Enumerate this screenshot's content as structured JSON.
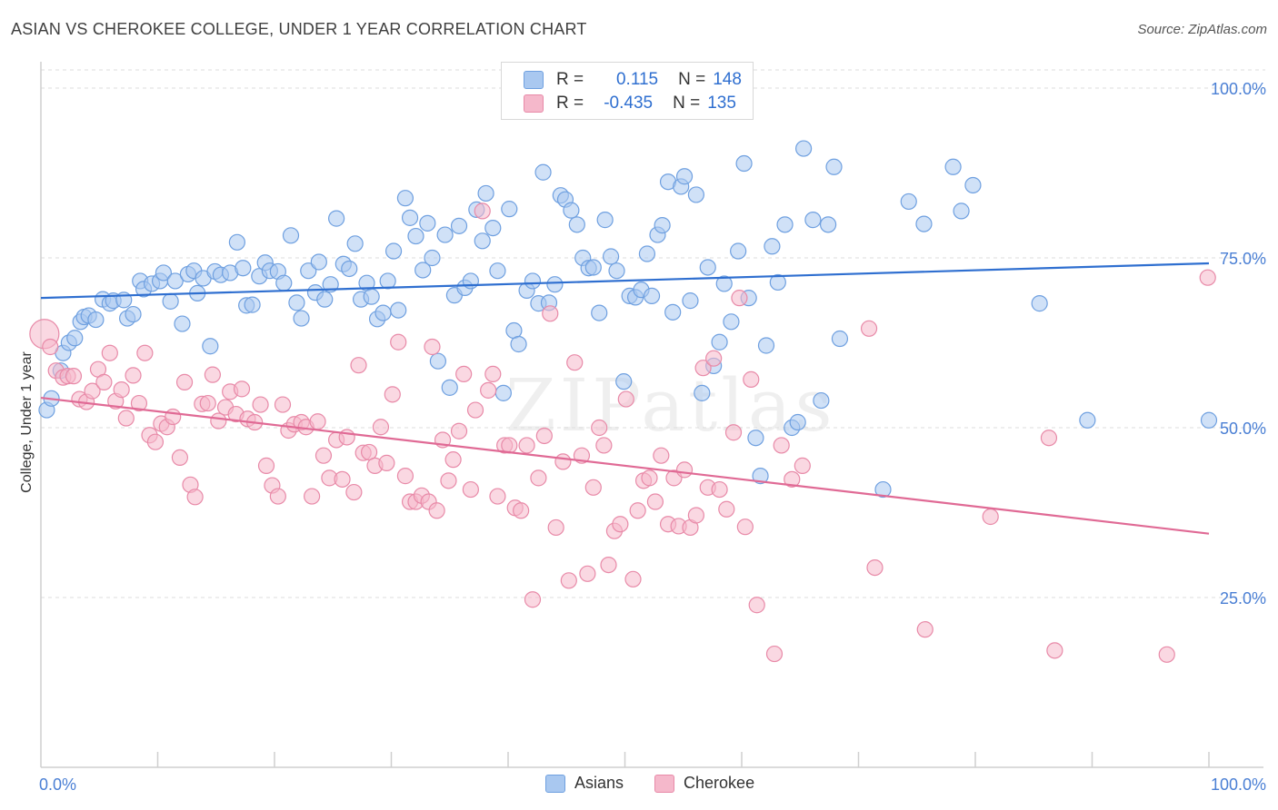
{
  "header": {
    "title": "ASIAN VS CHEROKEE COLLEGE, UNDER 1 YEAR CORRELATION CHART",
    "source": "Source: ZipAtlas.com"
  },
  "legend": {
    "rows": [
      {
        "r_label": "R =",
        "r_value": "0.115",
        "n_label": "N =",
        "n_value": "148",
        "color": "#a9c8f0"
      },
      {
        "r_label": "R =",
        "r_value": "-0.435",
        "n_label": "N =",
        "n_value": "135",
        "color": "#f5b8cb"
      }
    ]
  },
  "bottom_legend": {
    "items": [
      {
        "label": "Asians",
        "color": "#a9c8f0"
      },
      {
        "label": "Cherokee",
        "color": "#f5b8cb"
      }
    ]
  },
  "watermark": "ZIPatlas",
  "chart_data": {
    "type": "scatter",
    "title": "ASIAN VS CHEROKEE COLLEGE, UNDER 1 YEAR CORRELATION CHART",
    "xlabel": "",
    "ylabel": "College, Under 1 year",
    "xlim": [
      0,
      100
    ],
    "ylim": [
      0,
      105
    ],
    "x_tick_labels": [
      "0.0%",
      "100.0%"
    ],
    "y_ticks": [
      25,
      50,
      75,
      100
    ],
    "y_tick_labels": [
      "25.0%",
      "50.0%",
      "75.0%",
      "100.0%"
    ],
    "grid": true,
    "legend_position": "top-center",
    "series": [
      {
        "name": "Asians",
        "color": "#6fa0e0",
        "fill": "#a9c8f0",
        "r": 0.115,
        "n": 148,
        "trend": {
          "x": [
            0,
            100
          ],
          "y": [
            69.1,
            74.2
          ]
        },
        "points": [
          [
            0.5,
            52.6
          ],
          [
            0.9,
            54.3
          ],
          [
            1.7,
            58.4
          ],
          [
            1.9,
            61.0
          ],
          [
            2.4,
            62.5
          ],
          [
            2.9,
            63.2
          ],
          [
            3.4,
            65.6
          ],
          [
            3.7,
            66.3
          ],
          [
            4.1,
            66.5
          ],
          [
            4.7,
            65.9
          ],
          [
            5.3,
            68.9
          ],
          [
            5.9,
            68.3
          ],
          [
            6.2,
            68.7
          ],
          [
            7.1,
            68.8
          ],
          [
            7.4,
            66.1
          ],
          [
            7.9,
            66.7
          ],
          [
            8.5,
            71.6
          ],
          [
            8.8,
            70.4
          ],
          [
            9.5,
            71.2
          ],
          [
            10.2,
            71.6
          ],
          [
            10.5,
            72.8
          ],
          [
            11.1,
            68.6
          ],
          [
            11.5,
            71.6
          ],
          [
            12.1,
            65.3
          ],
          [
            12.6,
            72.6
          ],
          [
            13.1,
            73.1
          ],
          [
            13.4,
            69.8
          ],
          [
            13.9,
            72.0
          ],
          [
            14.5,
            62.0
          ],
          [
            14.9,
            73.0
          ],
          [
            15.4,
            72.5
          ],
          [
            16.2,
            72.8
          ],
          [
            16.8,
            77.3
          ],
          [
            17.3,
            73.5
          ],
          [
            17.6,
            68.0
          ],
          [
            18.1,
            68.1
          ],
          [
            18.7,
            72.3
          ],
          [
            19.2,
            74.3
          ],
          [
            19.6,
            73.1
          ],
          [
            20.3,
            73.0
          ],
          [
            20.8,
            71.3
          ],
          [
            21.4,
            78.3
          ],
          [
            21.9,
            68.4
          ],
          [
            22.3,
            66.1
          ],
          [
            22.9,
            73.1
          ],
          [
            23.5,
            69.9
          ],
          [
            23.8,
            74.4
          ],
          [
            24.3,
            68.9
          ],
          [
            24.8,
            71.1
          ],
          [
            25.3,
            80.8
          ],
          [
            25.9,
            74.1
          ],
          [
            26.4,
            73.4
          ],
          [
            26.9,
            77.1
          ],
          [
            27.4,
            68.9
          ],
          [
            27.9,
            71.3
          ],
          [
            28.3,
            69.3
          ],
          [
            28.8,
            66.0
          ],
          [
            29.3,
            66.9
          ],
          [
            29.7,
            71.6
          ],
          [
            30.2,
            76.0
          ],
          [
            30.6,
            67.3
          ],
          [
            31.2,
            83.8
          ],
          [
            31.6,
            80.9
          ],
          [
            32.1,
            78.2
          ],
          [
            32.7,
            73.2
          ],
          [
            33.1,
            80.1
          ],
          [
            33.5,
            75.0
          ],
          [
            34.0,
            59.8
          ],
          [
            34.6,
            78.4
          ],
          [
            35.0,
            55.9
          ],
          [
            35.4,
            69.5
          ],
          [
            35.8,
            79.7
          ],
          [
            36.3,
            70.6
          ],
          [
            36.8,
            71.6
          ],
          [
            37.3,
            82.1
          ],
          [
            37.8,
            77.5
          ],
          [
            38.1,
            84.5
          ],
          [
            38.7,
            79.4
          ],
          [
            39.1,
            73.1
          ],
          [
            39.6,
            55.1
          ],
          [
            40.1,
            82.2
          ],
          [
            40.5,
            64.3
          ],
          [
            40.9,
            62.3
          ],
          [
            41.6,
            70.2
          ],
          [
            42.1,
            71.6
          ],
          [
            42.6,
            68.3
          ],
          [
            43.0,
            87.6
          ],
          [
            43.5,
            68.4
          ],
          [
            44.0,
            71.1
          ],
          [
            44.5,
            84.2
          ],
          [
            44.9,
            83.6
          ],
          [
            45.4,
            82.0
          ],
          [
            45.9,
            79.9
          ],
          [
            46.4,
            75.0
          ],
          [
            46.9,
            73.5
          ],
          [
            47.3,
            73.6
          ],
          [
            47.8,
            66.9
          ],
          [
            48.3,
            80.6
          ],
          [
            48.8,
            75.2
          ],
          [
            49.3,
            73.1
          ],
          [
            49.9,
            56.8
          ],
          [
            50.4,
            69.4
          ],
          [
            50.9,
            69.2
          ],
          [
            51.4,
            70.3
          ],
          [
            51.9,
            75.6
          ],
          [
            52.3,
            69.4
          ],
          [
            52.8,
            78.4
          ],
          [
            53.2,
            79.8
          ],
          [
            53.7,
            86.2
          ],
          [
            54.1,
            67.0
          ],
          [
            54.8,
            85.5
          ],
          [
            55.1,
            87.0
          ],
          [
            55.6,
            68.7
          ],
          [
            56.1,
            84.3
          ],
          [
            56.6,
            55.1
          ],
          [
            57.1,
            73.6
          ],
          [
            57.6,
            59.1
          ],
          [
            58.1,
            62.6
          ],
          [
            58.5,
            71.2
          ],
          [
            59.1,
            65.6
          ],
          [
            59.7,
            76.0
          ],
          [
            60.2,
            88.9
          ],
          [
            60.6,
            69.1
          ],
          [
            61.2,
            48.5
          ],
          [
            61.6,
            42.9
          ],
          [
            62.1,
            62.1
          ],
          [
            62.6,
            76.7
          ],
          [
            63.1,
            71.4
          ],
          [
            63.7,
            79.9
          ],
          [
            64.3,
            50.0
          ],
          [
            64.8,
            50.8
          ],
          [
            65.3,
            91.1
          ],
          [
            66.1,
            80.6
          ],
          [
            66.8,
            54.0
          ],
          [
            67.4,
            79.9
          ],
          [
            67.9,
            88.4
          ],
          [
            68.4,
            63.1
          ],
          [
            72.1,
            40.9
          ],
          [
            74.3,
            83.3
          ],
          [
            75.6,
            80.0
          ],
          [
            78.1,
            88.4
          ],
          [
            78.8,
            81.9
          ],
          [
            79.8,
            85.7
          ],
          [
            85.5,
            68.3
          ],
          [
            89.6,
            51.1
          ],
          [
            100.0,
            51.1
          ]
        ]
      },
      {
        "name": "Cherokee",
        "color": "#e88aa8",
        "fill": "#f5b8cb",
        "r": -0.435,
        "n": 135,
        "trend": {
          "x": [
            0,
            100
          ],
          "y": [
            54.4,
            34.4
          ]
        },
        "points": [
          [
            0.3,
            63.8
          ],
          [
            0.8,
            61.9
          ],
          [
            1.3,
            58.4
          ],
          [
            1.9,
            57.4
          ],
          [
            2.3,
            57.6
          ],
          [
            2.8,
            57.6
          ],
          [
            3.3,
            54.2
          ],
          [
            3.9,
            53.8
          ],
          [
            4.4,
            55.4
          ],
          [
            4.9,
            58.6
          ],
          [
            5.4,
            56.7
          ],
          [
            5.9,
            61.0
          ],
          [
            6.4,
            53.9
          ],
          [
            6.9,
            55.6
          ],
          [
            7.3,
            51.4
          ],
          [
            7.9,
            57.7
          ],
          [
            8.4,
            53.6
          ],
          [
            8.9,
            61.0
          ],
          [
            9.3,
            48.9
          ],
          [
            9.8,
            47.9
          ],
          [
            10.3,
            50.6
          ],
          [
            10.8,
            50.1
          ],
          [
            11.3,
            51.6
          ],
          [
            11.9,
            45.6
          ],
          [
            12.3,
            56.7
          ],
          [
            12.8,
            41.6
          ],
          [
            13.2,
            39.8
          ],
          [
            13.8,
            53.5
          ],
          [
            14.3,
            53.6
          ],
          [
            14.7,
            57.8
          ],
          [
            15.2,
            51.0
          ],
          [
            15.8,
            53.0
          ],
          [
            16.2,
            55.3
          ],
          [
            16.7,
            52.0
          ],
          [
            17.2,
            55.7
          ],
          [
            17.7,
            51.3
          ],
          [
            18.3,
            50.8
          ],
          [
            18.8,
            53.4
          ],
          [
            19.3,
            44.4
          ],
          [
            19.8,
            41.5
          ],
          [
            20.3,
            39.9
          ],
          [
            20.7,
            53.4
          ],
          [
            21.2,
            49.6
          ],
          [
            21.7,
            50.5
          ],
          [
            22.3,
            50.8
          ],
          [
            22.7,
            50.1
          ],
          [
            23.2,
            39.9
          ],
          [
            23.7,
            50.9
          ],
          [
            24.2,
            45.9
          ],
          [
            24.7,
            42.6
          ],
          [
            25.3,
            48.2
          ],
          [
            25.8,
            42.4
          ],
          [
            26.2,
            48.6
          ],
          [
            26.8,
            40.5
          ],
          [
            27.2,
            59.2
          ],
          [
            27.6,
            46.3
          ],
          [
            28.1,
            46.4
          ],
          [
            28.6,
            44.4
          ],
          [
            29.1,
            50.1
          ],
          [
            29.6,
            44.8
          ],
          [
            30.1,
            54.9
          ],
          [
            30.6,
            62.6
          ],
          [
            31.2,
            42.9
          ],
          [
            31.6,
            39.1
          ],
          [
            32.1,
            39.1
          ],
          [
            32.6,
            40.0
          ],
          [
            33.2,
            39.1
          ],
          [
            33.5,
            61.9
          ],
          [
            33.9,
            37.8
          ],
          [
            34.4,
            48.2
          ],
          [
            34.9,
            42.2
          ],
          [
            35.3,
            45.3
          ],
          [
            35.8,
            49.5
          ],
          [
            36.2,
            57.9
          ],
          [
            36.8,
            40.9
          ],
          [
            37.2,
            52.6
          ],
          [
            37.8,
            81.9
          ],
          [
            38.3,
            55.5
          ],
          [
            38.7,
            57.9
          ],
          [
            39.1,
            39.9
          ],
          [
            39.7,
            47.4
          ],
          [
            40.1,
            47.4
          ],
          [
            40.6,
            38.2
          ],
          [
            41.1,
            37.8
          ],
          [
            41.6,
            47.4
          ],
          [
            42.1,
            24.7
          ],
          [
            42.6,
            42.6
          ],
          [
            43.1,
            48.8
          ],
          [
            43.6,
            66.8
          ],
          [
            44.1,
            35.3
          ],
          [
            44.7,
            45.0
          ],
          [
            45.2,
            27.5
          ],
          [
            45.7,
            59.6
          ],
          [
            46.3,
            45.9
          ],
          [
            46.8,
            28.5
          ],
          [
            47.3,
            41.2
          ],
          [
            47.8,
            50.0
          ],
          [
            48.2,
            47.4
          ],
          [
            48.6,
            29.8
          ],
          [
            49.1,
            34.8
          ],
          [
            49.6,
            35.8
          ],
          [
            50.1,
            54.2
          ],
          [
            50.7,
            27.7
          ],
          [
            51.1,
            37.8
          ],
          [
            51.6,
            42.2
          ],
          [
            52.1,
            42.6
          ],
          [
            52.6,
            39.1
          ],
          [
            53.1,
            45.9
          ],
          [
            53.7,
            35.8
          ],
          [
            54.2,
            42.6
          ],
          [
            54.6,
            35.5
          ],
          [
            55.1,
            43.8
          ],
          [
            55.6,
            35.3
          ],
          [
            56.1,
            37.1
          ],
          [
            56.7,
            58.8
          ],
          [
            57.1,
            41.2
          ],
          [
            57.6,
            60.2
          ],
          [
            58.1,
            40.9
          ],
          [
            58.7,
            38.0
          ],
          [
            59.3,
            49.3
          ],
          [
            59.8,
            69.1
          ],
          [
            60.3,
            35.4
          ],
          [
            60.8,
            57.1
          ],
          [
            61.3,
            23.9
          ],
          [
            62.8,
            16.7
          ],
          [
            63.4,
            47.4
          ],
          [
            64.3,
            42.4
          ],
          [
            65.2,
            44.4
          ],
          [
            70.9,
            64.6
          ],
          [
            71.4,
            29.4
          ],
          [
            75.7,
            20.3
          ],
          [
            81.3,
            36.9
          ],
          [
            86.3,
            48.5
          ],
          [
            86.8,
            17.2
          ],
          [
            96.4,
            16.6
          ],
          [
            99.9,
            72.1
          ]
        ]
      }
    ]
  }
}
